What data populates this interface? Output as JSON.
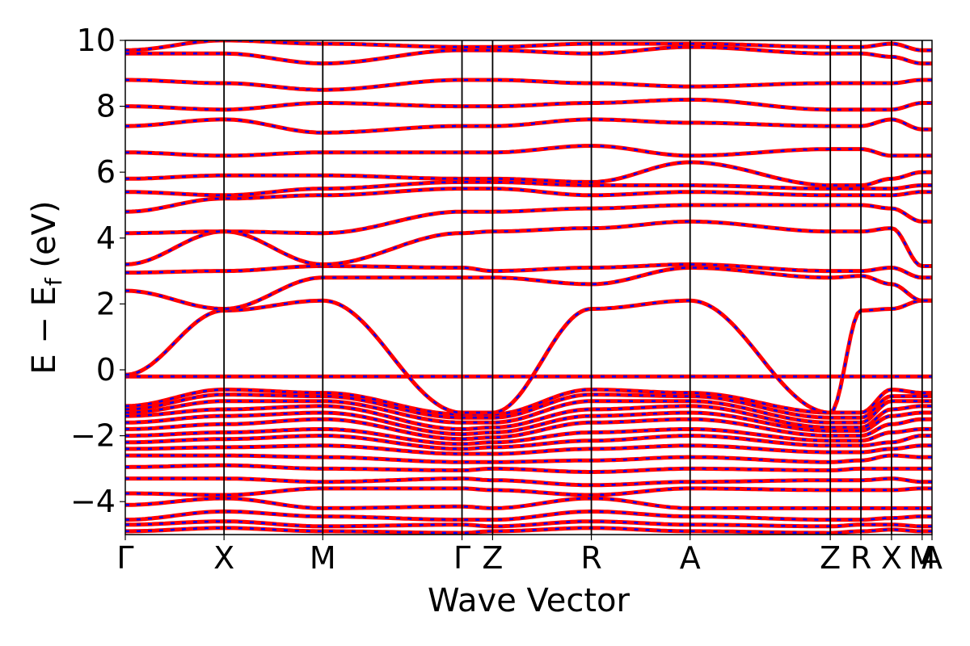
{
  "chart_data": {
    "type": "line",
    "title": "",
    "xlabel": "Wave Vector",
    "ylabel_main": "E − E",
    "ylabel_sub": "f",
    "ylabel_unit": " (eV)",
    "ylim": [
      -5,
      10
    ],
    "yticks": [
      -4,
      -2,
      0,
      2,
      4,
      6,
      8,
      10
    ],
    "ytick_labels": [
      "−4",
      "−2",
      "0",
      "2",
      "4",
      "6",
      "8",
      "10"
    ],
    "xlim": [
      0,
      8.17
    ],
    "k_points": [
      {
        "label": "Γ",
        "x": 0.0
      },
      {
        "label": "X",
        "x": 1.0
      },
      {
        "label": "M",
        "x": 2.0
      },
      {
        "label": "Γ",
        "x": 3.41
      },
      {
        "label": "Z",
        "x": 3.72
      },
      {
        "label": "R",
        "x": 4.72
      },
      {
        "label": "A",
        "x": 5.72
      },
      {
        "label": "Z",
        "x": 7.14
      },
      {
        "label": "R",
        "x": 7.45
      },
      {
        "label": "X",
        "x": 7.76
      },
      {
        "label": "M",
        "x": 8.07
      },
      {
        "label": "A",
        "x": 8.17
      }
    ],
    "grid": false,
    "line_colors": {
      "solid": "#ff0000",
      "dashed": "#0000ff"
    },
    "band_nodes": [
      {
        "name": "band-1",
        "values": [
          -4.9,
          -4.8,
          -4.9,
          -4.95,
          -4.9,
          -4.8,
          -4.9,
          -4.95,
          -4.9,
          -4.85,
          -4.9,
          -4.9
        ]
      },
      {
        "name": "band-2",
        "values": [
          -4.7,
          -4.6,
          -4.75,
          -4.7,
          -4.75,
          -4.6,
          -4.7,
          -4.75,
          -4.7,
          -4.7,
          -4.75,
          -4.75
        ]
      },
      {
        "name": "band-3",
        "values": [
          -4.55,
          -4.3,
          -4.45,
          -4.55,
          -4.55,
          -4.3,
          -4.45,
          -4.55,
          -4.55,
          -4.5,
          -4.45,
          -4.45
        ]
      },
      {
        "name": "band-4",
        "values": [
          -4.1,
          -3.9,
          -4.2,
          -4.15,
          -4.2,
          -3.9,
          -4.2,
          -4.2,
          -4.2,
          -4.2,
          -4.2,
          -4.2
        ]
      },
      {
        "name": "band-5",
        "values": [
          -3.75,
          -3.8,
          -3.6,
          -3.6,
          -3.65,
          -3.8,
          -3.6,
          -3.65,
          -3.65,
          -3.65,
          -3.6,
          -3.6
        ]
      },
      {
        "name": "band-6",
        "values": [
          -3.3,
          -3.3,
          -3.4,
          -3.3,
          -3.35,
          -3.5,
          -3.4,
          -3.35,
          -3.35,
          -3.3,
          -3.4,
          -3.4
        ]
      },
      {
        "name": "band-7",
        "values": [
          -2.95,
          -2.9,
          -3.0,
          -3.05,
          -3.0,
          -3.1,
          -3.0,
          -3.05,
          -3.0,
          -3.0,
          -3.0,
          -3.0
        ]
      },
      {
        "name": "band-8",
        "values": [
          -2.6,
          -2.6,
          -2.65,
          -2.8,
          -2.8,
          -2.75,
          -2.65,
          -2.8,
          -2.75,
          -2.6,
          -2.65,
          -2.65
        ]
      },
      {
        "name": "band-9",
        "values": [
          -2.4,
          -2.35,
          -2.3,
          -2.55,
          -2.55,
          -2.4,
          -2.3,
          -2.5,
          -2.5,
          -2.4,
          -2.3,
          -2.3
        ]
      },
      {
        "name": "band-10",
        "values": [
          -2.2,
          -2.1,
          -2.0,
          -2.4,
          -2.35,
          -2.15,
          -2.0,
          -2.3,
          -2.3,
          -2.2,
          -2.0,
          -2.0
        ]
      },
      {
        "name": "band-11",
        "values": [
          -2.0,
          -1.9,
          -1.8,
          -2.25,
          -2.2,
          -1.9,
          -1.8,
          -2.15,
          -2.15,
          -1.9,
          -1.8,
          -1.8
        ]
      },
      {
        "name": "band-12",
        "values": [
          -1.8,
          -1.65,
          -1.5,
          -2.1,
          -2.05,
          -1.6,
          -1.5,
          -2.0,
          -2.0,
          -1.65,
          -1.5,
          -1.5
        ]
      },
      {
        "name": "band-13",
        "values": [
          -1.6,
          -1.4,
          -1.3,
          -1.95,
          -1.9,
          -1.4,
          -1.3,
          -1.85,
          -1.85,
          -1.4,
          -1.3,
          -1.3
        ]
      },
      {
        "name": "band-14",
        "values": [
          -1.4,
          -1.2,
          -1.1,
          -1.8,
          -1.75,
          -1.2,
          -1.1,
          -1.75,
          -1.75,
          -1.2,
          -1.1,
          -1.1
        ]
      },
      {
        "name": "band-15",
        "values": [
          -1.3,
          -0.95,
          -0.95,
          -1.6,
          -1.6,
          -0.95,
          -0.95,
          -1.6,
          -1.6,
          -0.95,
          -0.95,
          -0.95
        ]
      },
      {
        "name": "band-16",
        "values": [
          -1.2,
          -0.75,
          -0.8,
          -1.45,
          -1.45,
          -0.75,
          -0.8,
          -1.45,
          -1.45,
          -0.8,
          -0.8,
          -0.8
        ]
      },
      {
        "name": "band-17",
        "values": [
          -1.1,
          -0.6,
          -0.7,
          -1.35,
          -1.35,
          -0.6,
          -0.7,
          -1.3,
          -1.3,
          -0.6,
          -0.7,
          -0.7
        ]
      },
      {
        "name": "band-18",
        "values": [
          -0.2,
          -0.2,
          -0.2,
          -0.2,
          -0.2,
          -0.2,
          -0.2,
          -0.2,
          -0.2,
          -0.2,
          -0.2,
          -0.2
        ]
      },
      {
        "name": "band-19",
        "values": [
          -0.15,
          1.8,
          2.1,
          -1.3,
          -1.3,
          1.85,
          2.1,
          -1.3,
          1.8,
          1.85,
          2.1,
          2.1
        ]
      },
      {
        "name": "band-20",
        "values": [
          2.4,
          1.85,
          2.8,
          2.8,
          2.8,
          2.6,
          3.1,
          2.8,
          2.85,
          2.6,
          2.1,
          2.1
        ]
      },
      {
        "name": "band-21",
        "values": [
          2.95,
          3.0,
          3.15,
          3.1,
          3.0,
          3.1,
          3.2,
          3.0,
          3.0,
          3.1,
          2.8,
          2.8
        ]
      },
      {
        "name": "band-22",
        "values": [
          3.2,
          4.2,
          3.2,
          4.15,
          4.2,
          4.3,
          4.5,
          4.2,
          4.2,
          4.3,
          3.15,
          3.15
        ]
      },
      {
        "name": "band-23",
        "values": [
          4.15,
          4.2,
          4.15,
          4.8,
          4.8,
          4.9,
          5.0,
          5.0,
          5.0,
          4.9,
          4.5,
          4.5
        ]
      },
      {
        "name": "band-24",
        "values": [
          4.8,
          5.2,
          5.3,
          5.5,
          5.5,
          5.3,
          5.4,
          5.3,
          5.3,
          5.3,
          5.4,
          5.4
        ]
      },
      {
        "name": "band-25",
        "values": [
          5.4,
          5.3,
          5.5,
          5.7,
          5.7,
          5.6,
          5.6,
          5.5,
          5.5,
          5.5,
          5.6,
          5.6
        ]
      },
      {
        "name": "band-26",
        "values": [
          5.8,
          5.9,
          5.9,
          5.8,
          5.8,
          5.7,
          6.3,
          5.6,
          5.6,
          5.8,
          6.0,
          6.0
        ]
      },
      {
        "name": "band-27",
        "values": [
          6.6,
          6.5,
          6.6,
          6.6,
          6.6,
          6.8,
          6.5,
          6.7,
          6.7,
          6.5,
          6.5,
          6.5
        ]
      },
      {
        "name": "band-28",
        "values": [
          7.4,
          7.6,
          7.2,
          7.4,
          7.4,
          7.6,
          7.5,
          7.4,
          7.4,
          7.6,
          7.3,
          7.3
        ]
      },
      {
        "name": "band-29",
        "values": [
          8.0,
          7.9,
          8.1,
          8.0,
          8.0,
          8.1,
          8.2,
          7.9,
          7.9,
          7.9,
          8.1,
          8.1
        ]
      },
      {
        "name": "band-30",
        "values": [
          8.8,
          8.7,
          8.5,
          8.8,
          8.8,
          8.7,
          8.6,
          8.7,
          8.7,
          8.7,
          8.8,
          8.8
        ]
      },
      {
        "name": "band-31",
        "values": [
          9.6,
          9.6,
          9.3,
          9.7,
          9.7,
          9.6,
          9.8,
          9.6,
          9.6,
          9.5,
          9.3,
          9.3
        ]
      },
      {
        "name": "band-32",
        "values": [
          9.7,
          10.0,
          9.9,
          9.8,
          9.8,
          9.9,
          9.9,
          9.8,
          9.8,
          9.9,
          9.7,
          9.7
        ]
      }
    ]
  }
}
